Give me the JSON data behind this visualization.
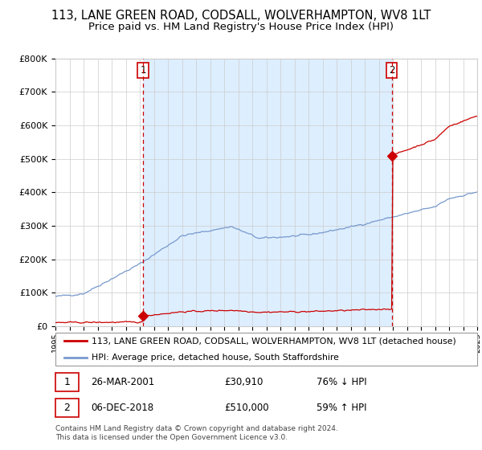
{
  "title": "113, LANE GREEN ROAD, CODSALL, WOLVERHAMPTON, WV8 1LT",
  "subtitle": "Price paid vs. HM Land Registry's House Price Index (HPI)",
  "ylim": [
    0,
    800000
  ],
  "yticks": [
    0,
    100000,
    200000,
    300000,
    400000,
    500000,
    600000,
    700000,
    800000
  ],
  "ytick_labels": [
    "£0",
    "£100K",
    "£200K",
    "£300K",
    "£400K",
    "£500K",
    "£600K",
    "£700K",
    "£800K"
  ],
  "x_start_year": 1995,
  "x_end_year": 2025,
  "sale1_year": 2001.23,
  "sale1_price": 30910,
  "sale2_year": 2018.92,
  "sale2_price": 510000,
  "red_line_color": "#cc0000",
  "blue_line_color": "#7799cc",
  "shade_color": "#ddeeff",
  "vline_color": "#cc0000",
  "background_color": "#ffffff",
  "grid_color": "#cccccc",
  "legend_line1": "113, LANE GREEN ROAD, CODSALL, WOLVERHAMPTON, WV8 1LT (detached house)",
  "legend_line2": "HPI: Average price, detached house, South Staffordshire",
  "table_row1": [
    "1",
    "26-MAR-2001",
    "£30,910",
    "76% ↓ HPI"
  ],
  "table_row2": [
    "2",
    "06-DEC-2018",
    "£510,000",
    "59% ↑ HPI"
  ],
  "footnote": "Contains HM Land Registry data © Crown copyright and database right 2024.\nThis data is licensed under the Open Government Licence v3.0.",
  "title_fontsize": 10.5,
  "subtitle_fontsize": 9.5
}
